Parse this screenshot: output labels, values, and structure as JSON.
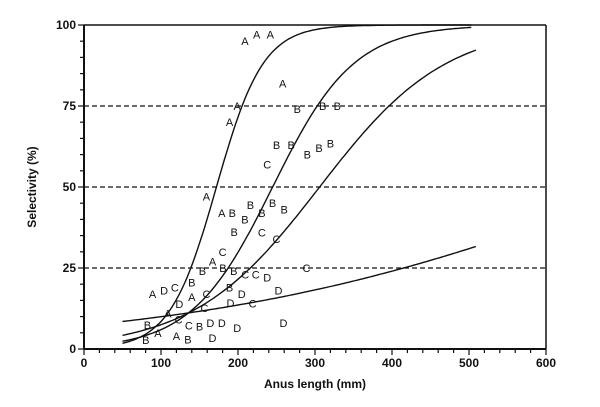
{
  "chart_data": {
    "type": "scatter",
    "title": "",
    "xlabel": "Anus length (mm)",
    "ylabel": "Selectivity (%)",
    "xlim": [
      0,
      600
    ],
    "ylim": [
      0,
      100
    ],
    "xticks": [
      "0",
      "100",
      "200",
      "300",
      "400",
      "500",
      "600"
    ],
    "yticks": [
      "0",
      "25",
      "50",
      "75",
      "100"
    ],
    "reference_lines_y": [
      25,
      50,
      75
    ],
    "grid": false,
    "series": [
      {
        "marker": "A",
        "points": [
          [
            209,
            95
          ],
          [
            219,
            97
          ],
          [
            238,
            98
          ],
          [
            258,
            82
          ],
          [
            199,
            75
          ],
          [
            189,
            70
          ],
          [
            159,
            47
          ],
          [
            179,
            42
          ],
          [
            89,
            17
          ],
          [
            109,
            11
          ],
          [
            120,
            4
          ],
          [
            140,
            16
          ],
          [
            167,
            27
          ],
          [
            96,
            5
          ]
        ]
      },
      {
        "marker": "B",
        "points": [
          [
            277,
            74
          ],
          [
            310,
            75
          ],
          [
            329,
            75
          ],
          [
            250,
            63
          ],
          [
            269,
            63
          ],
          [
            290,
            60
          ],
          [
            300,
            62
          ],
          [
            320,
            63.5
          ],
          [
            190,
            42
          ],
          [
            209,
            40
          ],
          [
            199,
            37
          ],
          [
            231,
            42
          ],
          [
            224,
            45
          ],
          [
            260,
            43
          ],
          [
            237,
            45
          ],
          [
            159,
            24
          ],
          [
            170,
            25
          ],
          [
            179,
            24
          ],
          [
            79,
            1
          ],
          [
            98,
            1
          ],
          [
            109,
            3
          ],
          [
            189,
            19
          ],
          [
            140,
            18
          ],
          [
            150,
            7
          ]
        ]
      },
      {
        "marker": "C",
        "points": [
          [
            238,
            57
          ],
          [
            180,
            30
          ],
          [
            231,
            36
          ],
          [
            250,
            34
          ],
          [
            289,
            25
          ],
          [
            199,
            23
          ],
          [
            210,
            23
          ],
          [
            219,
            14
          ],
          [
            159,
            17
          ],
          [
            140,
            3
          ],
          [
            118,
            19
          ],
          [
            128,
            7
          ],
          [
            146,
            17
          ]
        ]
      },
      {
        "marker": "D",
        "points": [
          [
            108,
            19
          ],
          [
            238,
            22
          ],
          [
            250,
            18
          ],
          [
            210,
            17
          ],
          [
            189,
            16
          ],
          [
            259,
            8
          ],
          [
            199,
            6.5
          ],
          [
            179,
            8
          ],
          [
            168,
            9
          ],
          [
            159,
            6.5
          ],
          [
            120,
            13
          ]
        ]
      }
    ],
    "fitted_curves": [
      {
        "marker": "A",
        "model": "logistic",
        "x50": 172,
        "slope": 0.033,
        "x_range": [
          50,
          505
        ]
      },
      {
        "marker": "B",
        "model": "logistic",
        "x50": 245,
        "slope": 0.019,
        "x_range": [
          50,
          505
        ]
      },
      {
        "marker": "C",
        "model": "logistic",
        "x50": 306,
        "slope": 0.0122,
        "x_range": [
          50,
          510
        ]
      },
      {
        "marker": "D",
        "model": "logistic",
        "x50": 729,
        "slope": 0.0035,
        "x_range": [
          50,
          510
        ]
      }
    ]
  }
}
